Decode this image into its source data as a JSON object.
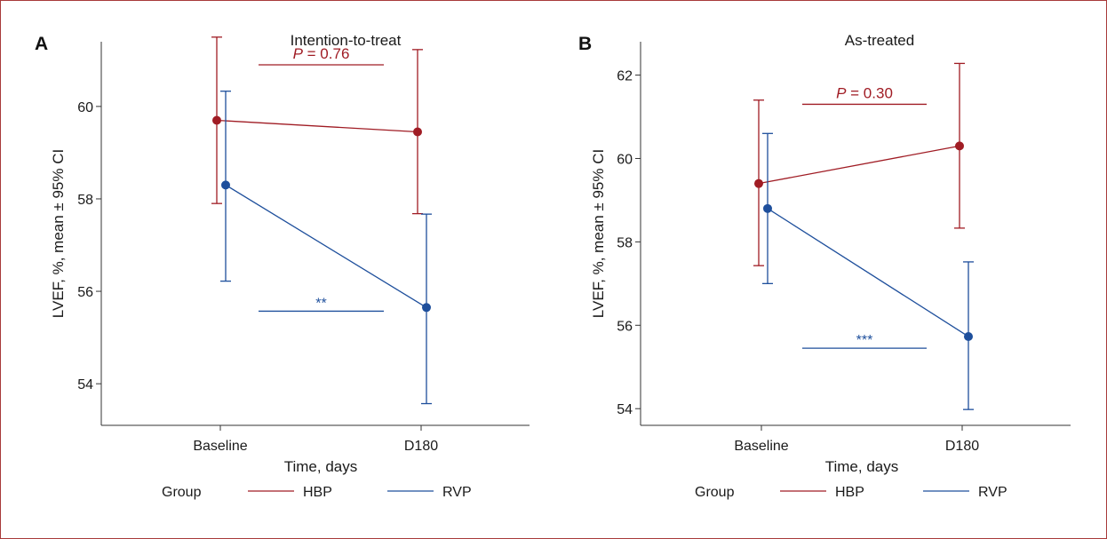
{
  "colors": {
    "HBP": "#a01c24",
    "RVP": "#1e4f9c",
    "axis": "#333333"
  },
  "legend": {
    "title": "Group"
  },
  "chart_data": [
    {
      "panel": "A",
      "type": "line",
      "title": "Intention-to-treat",
      "xlabel": "Time, days",
      "ylabel": "LVEF, %, mean ± 95% CI",
      "categories": [
        "Baseline",
        "D180"
      ],
      "ylim": [
        53.1,
        61.4
      ],
      "yticks": [
        54,
        56,
        58,
        60
      ],
      "legend_position": "bottom",
      "series": [
        {
          "name": "HBP",
          "values": [
            59.7,
            59.45
          ],
          "ci_low": [
            57.9,
            57.68
          ],
          "ci_high": [
            61.5,
            61.23
          ]
        },
        {
          "name": "RVP",
          "values": [
            58.3,
            55.65
          ],
          "ci_low": [
            56.22,
            53.57
          ],
          "ci_high": [
            60.33,
            57.67
          ]
        }
      ],
      "annotations": [
        {
          "series": "HBP",
          "text_prefix": "P",
          "text_value": " = 0.76",
          "y": 60.9
        },
        {
          "series": "RVP",
          "text": "**",
          "y": 55.57
        }
      ]
    },
    {
      "panel": "B",
      "type": "line",
      "title": "As-treated",
      "xlabel": "Time, days",
      "ylabel": "LVEF, %, mean ± 95% CI",
      "categories": [
        "Baseline",
        "D180"
      ],
      "ylim": [
        53.6,
        62.8
      ],
      "yticks": [
        54,
        56,
        58,
        60,
        62
      ],
      "legend_position": "bottom",
      "series": [
        {
          "name": "HBP",
          "values": [
            59.4,
            60.3
          ],
          "ci_low": [
            57.43,
            58.33
          ],
          "ci_high": [
            61.4,
            62.28
          ]
        },
        {
          "name": "RVP",
          "values": [
            58.8,
            55.73
          ],
          "ci_low": [
            57.0,
            53.98
          ],
          "ci_high": [
            60.6,
            57.52
          ]
        }
      ],
      "annotations": [
        {
          "series": "HBP",
          "text_prefix": "P",
          "text_value": " = 0.30",
          "y": 61.3
        },
        {
          "series": "RVP",
          "text": "***",
          "y": 55.45
        }
      ]
    }
  ]
}
